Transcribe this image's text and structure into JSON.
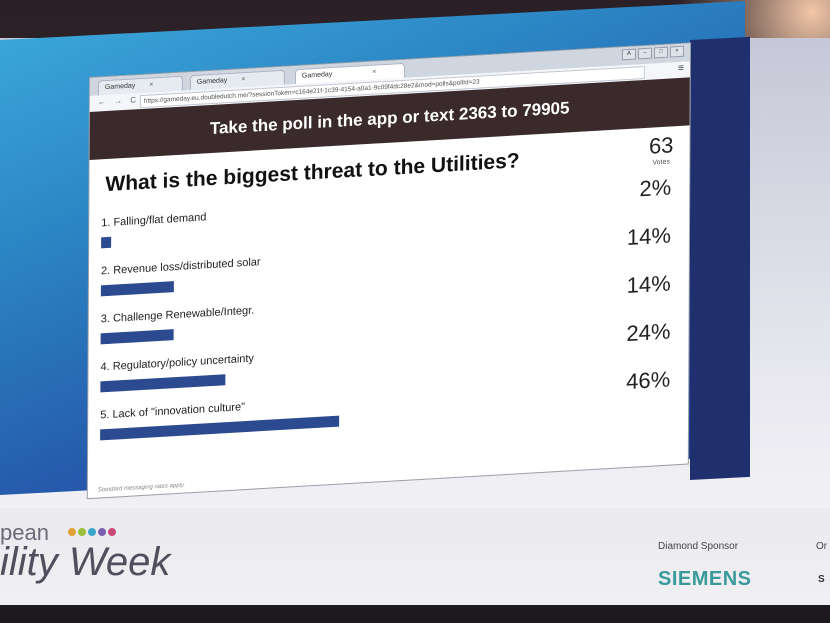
{
  "browser": {
    "tabs": [
      "Gameday",
      "Gameday",
      "Gameday"
    ],
    "tab_close": "×",
    "window_buttons": [
      "A",
      "–",
      "□",
      "×"
    ],
    "nav_glyphs": "← → C",
    "url_prefix": "https://",
    "url_rest": "gameday.eu.doubledutch.me/?sessionToken=c164e21f-1c39-4154-a0a1-9c09f4dc28e2&mod=polls&pollId=23",
    "menu_glyph": "≡"
  },
  "poll": {
    "header": "Take the poll in the app or text 2363 to 79905",
    "question": "What is the biggest threat to the Utilities?",
    "votes_count": "63",
    "votes_label": "Votes",
    "options": [
      {
        "label": "1. Falling/flat demand",
        "pct": "2%",
        "value": 2
      },
      {
        "label": "2. Revenue loss/distributed solar",
        "pct": "14%",
        "value": 14
      },
      {
        "label": "3. Challenge Renewable/Integr.",
        "pct": "14%",
        "value": 14
      },
      {
        "label": "4. Regulatory/policy uncertainty",
        "pct": "24%",
        "value": 24
      },
      {
        "label": "5. Lack of \"innovation culture\"",
        "pct": "46%",
        "value": 46
      }
    ],
    "footnote": "Standard messaging rates apply.",
    "bar_color": "#2c4a8f",
    "header_color": "#3b2a2c"
  },
  "branding": {
    "logo_line1": "pean",
    "logo_line2": "ility Week",
    "dot_colors": [
      "#e0a33a",
      "#9bbf3a",
      "#3aa6c9",
      "#7a5fb0",
      "#c94a7a"
    ],
    "sponsor_label": "Diamond Sponsor",
    "sponsor_name": "SIEMENS",
    "edge_label": "Or",
    "edge_name": "S"
  }
}
